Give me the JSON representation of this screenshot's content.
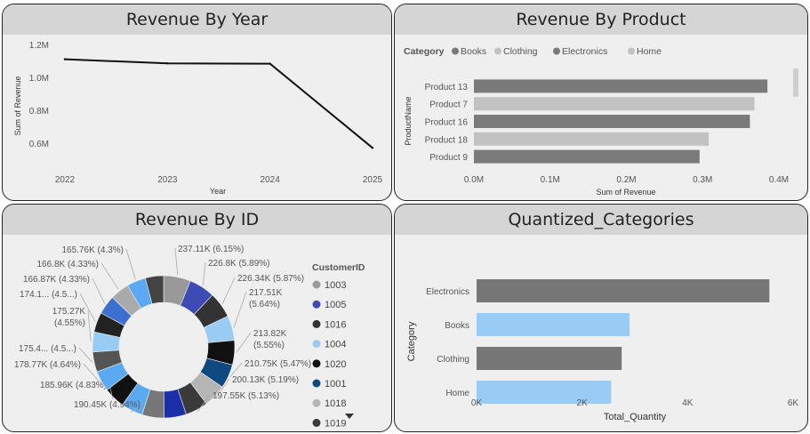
{
  "colors": {
    "dark": "#7a7a7a",
    "light": "#c2c2c2",
    "c1003": "#999999",
    "c1005": "#3e4bb4",
    "c1016": "#333333",
    "c1004": "#99ccf5",
    "c1020": "#111111",
    "c1001": "#0e4a80",
    "c1018": "#b5b5b5",
    "c1019": "#3a3a3a",
    "blue_light": "#99ccf5",
    "gray_bar": "#777777"
  },
  "panels": {
    "year": {
      "title": "Revenue By Year"
    },
    "product": {
      "title": "Revenue By Product"
    },
    "id": {
      "title": "Revenue By ID"
    },
    "quant": {
      "title": "Quantized_Categories"
    }
  },
  "chart_data": [
    {
      "type": "line",
      "title": "Revenue By Year",
      "xlabel": "Year",
      "ylabel": "Sum of Revenue",
      "x": [
        "2022",
        "2023",
        "2024",
        "2025"
      ],
      "y": [
        1.11,
        1.085,
        1.083,
        0.57
      ],
      "yticks": [
        "1.2M",
        "1.0M",
        "0.8M",
        "0.6M"
      ],
      "ylim": [
        0.55,
        1.2
      ],
      "grid": false
    },
    {
      "type": "bar",
      "orientation": "horizontal",
      "title": "Revenue By Product",
      "xlabel": "Sum of Revenue",
      "ylabel": "ProductName",
      "legend_title": "Category",
      "legend": [
        {
          "name": "Books",
          "color": "#7a7a7a"
        },
        {
          "name": "Clothing",
          "color": "#c2c2c2"
        },
        {
          "name": "Electronics",
          "color": "#7a7a7a"
        },
        {
          "name": "Home",
          "color": "#c2c2c2"
        }
      ],
      "categories": [
        "Product 13",
        "Product 7",
        "Product 16",
        "Product 18",
        "Product 9"
      ],
      "values": [
        0.385,
        0.368,
        0.362,
        0.308,
        0.296
      ],
      "bar_colors": [
        "#7a7a7a",
        "#c2c2c2",
        "#7a7a7a",
        "#c2c2c2",
        "#7a7a7a"
      ],
      "xticks": [
        "0.0M",
        "0.1M",
        "0.2M",
        "0.3M",
        "0.4M"
      ],
      "xlim": [
        0,
        0.4
      ],
      "legend_position": "top-left"
    },
    {
      "type": "pie",
      "subtype": "donut",
      "title": "Revenue By ID",
      "legend_title": "CustomerID",
      "legend": [
        {
          "name": "1003",
          "color": "#999999"
        },
        {
          "name": "1005",
          "color": "#3e4bb4"
        },
        {
          "name": "1016",
          "color": "#333333"
        },
        {
          "name": "1004",
          "color": "#99ccf5"
        },
        {
          "name": "1020",
          "color": "#111111"
        },
        {
          "name": "1001",
          "color": "#0e4a80"
        },
        {
          "name": "1018",
          "color": "#b5b5b5"
        },
        {
          "name": "1019",
          "color": "#3a3a3a"
        }
      ],
      "slices": [
        {
          "value": 237.11,
          "label": "237.11K (6.15%)",
          "color": "#999999"
        },
        {
          "value": 226.8,
          "label": "226.8K (5.89%)",
          "color": "#3e4bb4"
        },
        {
          "value": 226.34,
          "label": "226.34K (5.87%)",
          "color": "#333333"
        },
        {
          "value": 217.51,
          "label": "217.51K (5.64%)",
          "color": "#99ccf5"
        },
        {
          "value": 213.82,
          "label": "213.82K (5.55%)",
          "color": "#111111"
        },
        {
          "value": 210.75,
          "label": "210.75K (5.47%)",
          "color": "#0e4a80"
        },
        {
          "value": 200.13,
          "label": "200.13K (5.19%)",
          "color": "#b5b5b5"
        },
        {
          "value": 197.55,
          "label": "197.55K (5.13%)",
          "color": "#3a3a3a"
        },
        {
          "value": 195.0,
          "label": "",
          "color": "#1a2fa8"
        },
        {
          "value": 192.0,
          "label": "",
          "color": "#777777"
        },
        {
          "value": 190.45,
          "label": "190.45K (4.94%)",
          "color": "#5aa9f2"
        },
        {
          "value": 185.96,
          "label": "185.96K (4.83%)",
          "color": "#111111"
        },
        {
          "value": 178.77,
          "label": "178.77K (4.64%)",
          "color": "#5aa9f2"
        },
        {
          "value": 175.4,
          "label": "175.4... (4.5...)",
          "color": "#555555"
        },
        {
          "value": 175.27,
          "label": "175.27K (4.55%)",
          "color": "#99ccf5"
        },
        {
          "value": 174.1,
          "label": "174.1... (4.5...)",
          "color": "#222222"
        },
        {
          "value": 166.87,
          "label": "166.87K (4.33%)",
          "color": "#3d6fd1"
        },
        {
          "value": 166.8,
          "label": "166.8K (4.33%)",
          "color": "#aaaaaa"
        },
        {
          "value": 165.76,
          "label": "165.76K (4.3%)",
          "color": "#5aa9f2"
        },
        {
          "value": 160.0,
          "label": "",
          "color": "#444444"
        }
      ]
    },
    {
      "type": "bar",
      "orientation": "horizontal",
      "title": "Quantized_Categories",
      "xlabel": "Total_Quantity",
      "ylabel": "Category",
      "categories": [
        "Electronics",
        "Books",
        "Clothing",
        "Home"
      ],
      "values": [
        5.55,
        2.9,
        2.75,
        2.55
      ],
      "bar_colors": [
        "#777777",
        "#99ccf5",
        "#777777",
        "#99ccf5"
      ],
      "xticks": [
        "0K",
        "2K",
        "4K",
        "6K"
      ],
      "xlim": [
        0,
        6
      ]
    }
  ]
}
